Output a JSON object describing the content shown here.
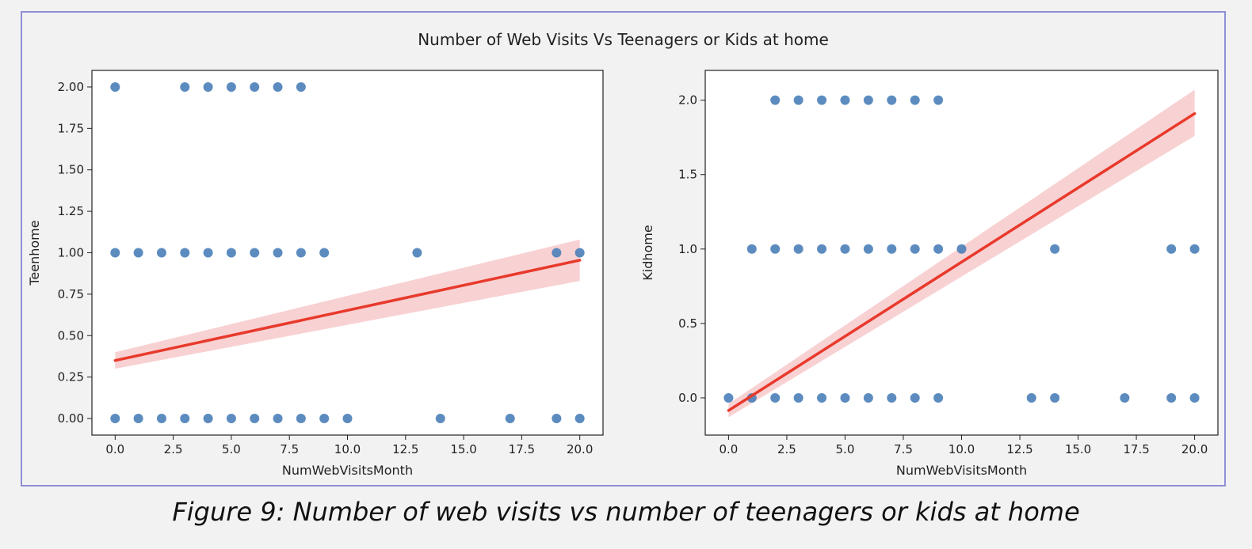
{
  "figure": {
    "suptitle": "Number of Web Visits Vs Teenagers or Kids at home",
    "caption": "Figure 9: Number of web visits vs number of teenagers or kids at home"
  },
  "colors": {
    "points": "#4a7fb8",
    "reg_line": "#e8392b",
    "ci_band": "#f4b8bb"
  },
  "chart_data": [
    {
      "type": "scatter",
      "xlabel": "NumWebVisitsMonth",
      "ylabel": "Teenhome",
      "xlim": [
        -1,
        21
      ],
      "ylim": [
        -0.1,
        2.1
      ],
      "xticks": [
        "0.0",
        "2.5",
        "5.0",
        "7.5",
        "10.0",
        "12.5",
        "15.0",
        "17.5",
        "20.0"
      ],
      "xtick_values": [
        0,
        2.5,
        5,
        7.5,
        10,
        12.5,
        15,
        17.5,
        20
      ],
      "yticks": [
        "0.00",
        "0.25",
        "0.50",
        "0.75",
        "1.00",
        "1.25",
        "1.50",
        "1.75",
        "2.00"
      ],
      "ytick_values": [
        0,
        0.25,
        0.5,
        0.75,
        1.0,
        1.25,
        1.5,
        1.75,
        2.0
      ],
      "points": [
        [
          0,
          2
        ],
        [
          3,
          2
        ],
        [
          4,
          2
        ],
        [
          5,
          2
        ],
        [
          6,
          2
        ],
        [
          7,
          2
        ],
        [
          8,
          2
        ],
        [
          0,
          1
        ],
        [
          1,
          1
        ],
        [
          2,
          1
        ],
        [
          3,
          1
        ],
        [
          4,
          1
        ],
        [
          5,
          1
        ],
        [
          6,
          1
        ],
        [
          7,
          1
        ],
        [
          8,
          1
        ],
        [
          9,
          1
        ],
        [
          13,
          1
        ],
        [
          19,
          1
        ],
        [
          20,
          1
        ],
        [
          0,
          0
        ],
        [
          1,
          0
        ],
        [
          2,
          0
        ],
        [
          3,
          0
        ],
        [
          4,
          0
        ],
        [
          5,
          0
        ],
        [
          6,
          0
        ],
        [
          7,
          0
        ],
        [
          8,
          0
        ],
        [
          9,
          0
        ],
        [
          10,
          0
        ],
        [
          14,
          0
        ],
        [
          17,
          0
        ],
        [
          19,
          0
        ],
        [
          20,
          0
        ]
      ],
      "regression": {
        "x": [
          0,
          20
        ],
        "y": [
          0.35,
          0.955
        ]
      },
      "ci_band": {
        "x": [
          0,
          20
        ],
        "lower": [
          0.3,
          0.83
        ],
        "upper": [
          0.4,
          1.08
        ]
      }
    },
    {
      "type": "scatter",
      "xlabel": "NumWebVisitsMonth",
      "ylabel": "Kidhome",
      "xlim": [
        -1,
        21
      ],
      "ylim": [
        -0.25,
        2.2
      ],
      "xticks": [
        "0.0",
        "2.5",
        "5.0",
        "7.5",
        "10.0",
        "12.5",
        "15.0",
        "17.5",
        "20.0"
      ],
      "xtick_values": [
        0,
        2.5,
        5,
        7.5,
        10,
        12.5,
        15,
        17.5,
        20
      ],
      "yticks": [
        "0.0",
        "0.5",
        "1.0",
        "1.5",
        "2.0"
      ],
      "ytick_values": [
        0,
        0.5,
        1.0,
        1.5,
        2.0
      ],
      "points": [
        [
          2,
          2
        ],
        [
          3,
          2
        ],
        [
          4,
          2
        ],
        [
          5,
          2
        ],
        [
          6,
          2
        ],
        [
          7,
          2
        ],
        [
          8,
          2
        ],
        [
          9,
          2
        ],
        [
          1,
          1
        ],
        [
          2,
          1
        ],
        [
          3,
          1
        ],
        [
          4,
          1
        ],
        [
          5,
          1
        ],
        [
          6,
          1
        ],
        [
          7,
          1
        ],
        [
          8,
          1
        ],
        [
          9,
          1
        ],
        [
          10,
          1
        ],
        [
          14,
          1
        ],
        [
          19,
          1
        ],
        [
          20,
          1
        ],
        [
          0,
          0
        ],
        [
          1,
          0
        ],
        [
          2,
          0
        ],
        [
          3,
          0
        ],
        [
          4,
          0
        ],
        [
          5,
          0
        ],
        [
          6,
          0
        ],
        [
          7,
          0
        ],
        [
          8,
          0
        ],
        [
          9,
          0
        ],
        [
          13,
          0
        ],
        [
          14,
          0
        ],
        [
          17,
          0
        ],
        [
          19,
          0
        ],
        [
          20,
          0
        ]
      ],
      "regression": {
        "x": [
          0,
          20
        ],
        "y": [
          -0.085,
          1.91
        ]
      },
      "ci_band": {
        "x": [
          0,
          20
        ],
        "lower": [
          -0.13,
          1.76
        ],
        "upper": [
          -0.04,
          2.07
        ]
      }
    }
  ]
}
